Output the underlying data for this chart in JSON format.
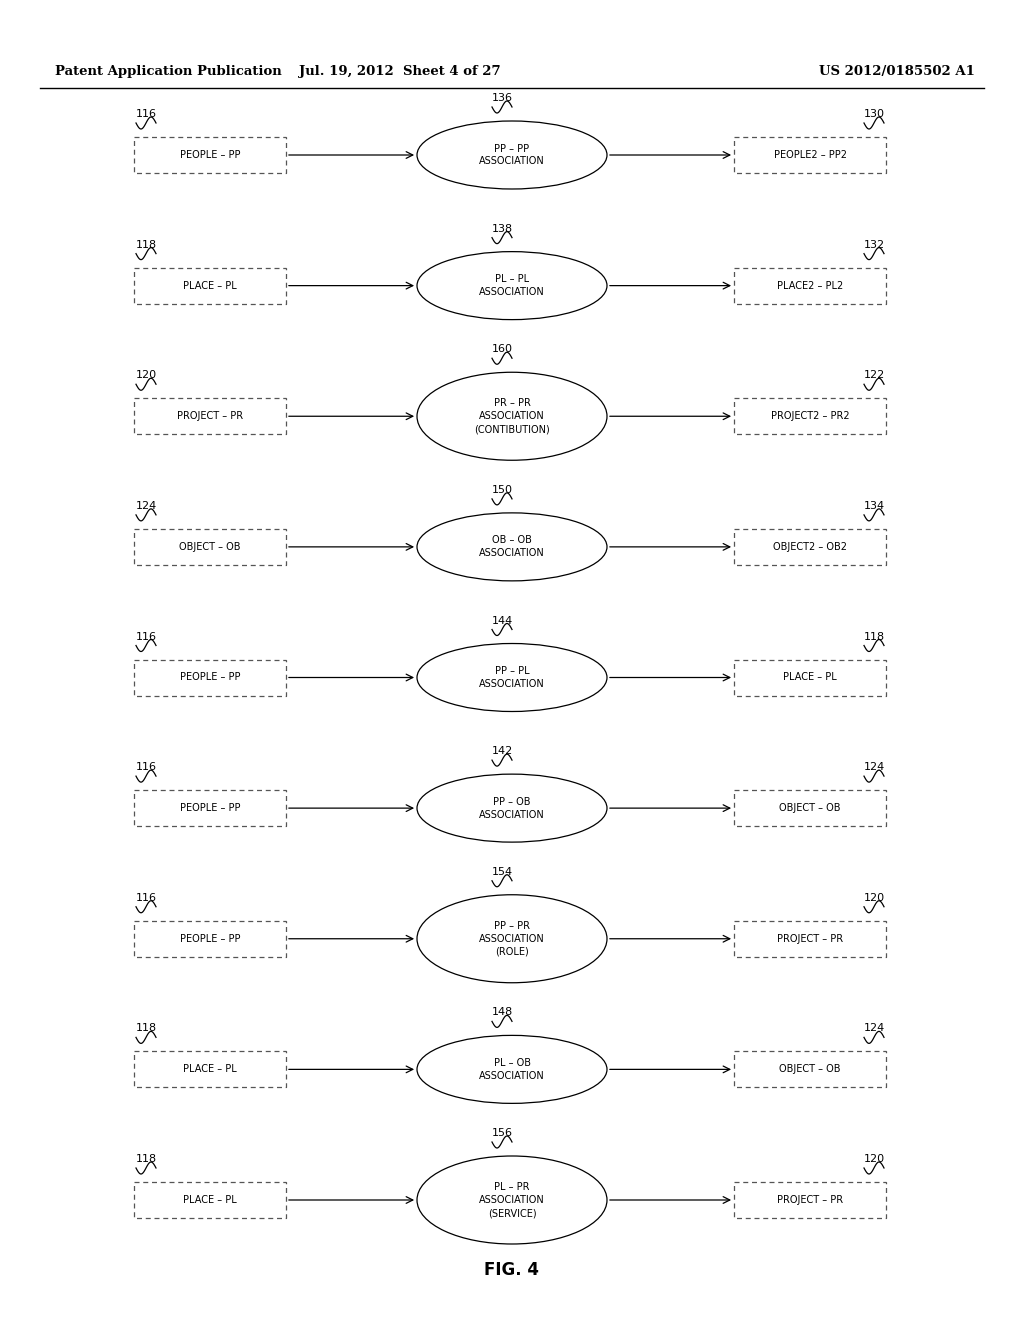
{
  "header_left": "Patent Application Publication",
  "header_mid": "Jul. 19, 2012  Sheet 4 of 27",
  "header_right": "US 2012/0185502 A1",
  "figure_label": "FIG. 4",
  "rows": [
    {
      "left_label": "116",
      "left_box": "PEOPLE – PP",
      "ellipse_label": "136",
      "ellipse_text": "PP – PP\nASSOCIATION",
      "right_label": "130",
      "right_box": "PEOPLE2 – PP2"
    },
    {
      "left_label": "118",
      "left_box": "PLACE – PL",
      "ellipse_label": "138",
      "ellipse_text": "PL – PL\nASSOCIATION",
      "right_label": "132",
      "right_box": "PLACE2 – PL2"
    },
    {
      "left_label": "120",
      "left_box": "PROJECT – PR",
      "ellipse_label": "160",
      "ellipse_text": "PR – PR\nASSOCIATION\n(CONTIBUTION)",
      "right_label": "122",
      "right_box": "PROJECT2 – PR2"
    },
    {
      "left_label": "124",
      "left_box": "OBJECT – OB",
      "ellipse_label": "150",
      "ellipse_text": "OB – OB\nASSOCIATION",
      "right_label": "134",
      "right_box": "OBJECT2 – OB2"
    },
    {
      "left_label": "116",
      "left_box": "PEOPLE – PP",
      "ellipse_label": "144",
      "ellipse_text": "PP – PL\nASSOCIATION",
      "right_label": "118",
      "right_box": "PLACE – PL"
    },
    {
      "left_label": "116",
      "left_box": "PEOPLE – PP",
      "ellipse_label": "142",
      "ellipse_text": "PP – OB\nASSOCIATION",
      "right_label": "124",
      "right_box": "OBJECT – OB"
    },
    {
      "left_label": "116",
      "left_box": "PEOPLE – PP",
      "ellipse_label": "154",
      "ellipse_text": "PP – PR\nASSOCIATION\n(ROLE)",
      "right_label": "120",
      "right_box": "PROJECT – PR"
    },
    {
      "left_label": "118",
      "left_box": "PLACE – PL",
      "ellipse_label": "148",
      "ellipse_text": "PL – OB\nASSOCIATION",
      "right_label": "124",
      "right_box": "OBJECT – OB"
    },
    {
      "left_label": "118",
      "left_box": "PLACE – PL",
      "ellipse_label": "156",
      "ellipse_text": "PL – PR\nASSOCIATION\n(SERVICE)",
      "right_label": "120",
      "right_box": "PROJECT – PR"
    }
  ]
}
